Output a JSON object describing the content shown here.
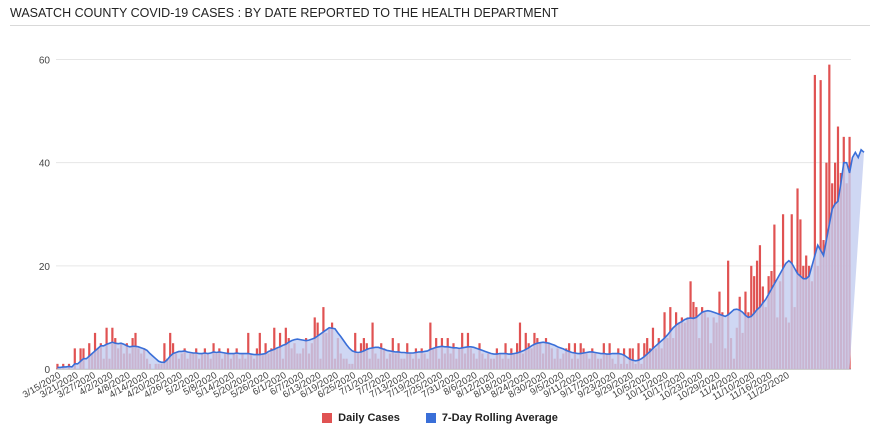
{
  "title": "WASATCH COUNTY COVID-19 CASES : BY DATE REPORTED TO THE HEALTH DEPARTMENT",
  "colors": {
    "daily": "#e05252",
    "rolling": "#3a6fd8",
    "rollingFill": "#c3cdf0"
  },
  "legend": {
    "daily": "Daily Cases",
    "rolling": "7-Day Rolling Average"
  },
  "chart_data": {
    "type": "bar",
    "start_date": "3/15/2020",
    "end_date": "11/22/2020",
    "yticks": [
      0,
      20,
      40,
      60
    ],
    "ylim": [
      0,
      63
    ],
    "xtick_labels": [
      "3/15/2020",
      "3/21/2020",
      "3/27/2020",
      "4/2/2020",
      "4/8/2020",
      "4/14/2020",
      "4/20/2020",
      "4/26/2020",
      "5/2/2020",
      "5/8/2020",
      "5/14/2020",
      "5/20/2020",
      "5/26/2020",
      "6/1/2020",
      "6/7/2020",
      "6/13/2020",
      "6/19/2020",
      "6/25/2020",
      "7/1/2020",
      "7/7/2020",
      "7/13/2020",
      "7/19/2020",
      "7/25/2020",
      "7/31/2020",
      "8/6/2020",
      "8/12/2020",
      "8/18/2020",
      "8/24/2020",
      "8/30/2020",
      "9/5/2020",
      "9/11/2020",
      "9/17/2020",
      "9/23/2020",
      "9/29/2020",
      "10/5/2020",
      "10/11/2020",
      "10/17/2020",
      "10/23/2020",
      "10/29/2020",
      "11/4/2020",
      "11/10/2020",
      "11/16/2020",
      "11/22/2020"
    ],
    "series": [
      {
        "name": "Daily Cases",
        "values": [
          1,
          0,
          1,
          0,
          1,
          0,
          4,
          0,
          4,
          4,
          0,
          5,
          3,
          7,
          4,
          5,
          2,
          8,
          2,
          8,
          6,
          4,
          5,
          3,
          5,
          3,
          6,
          7,
          4,
          3,
          4,
          2,
          1,
          0,
          1,
          1,
          1,
          5,
          2,
          7,
          5,
          3,
          2,
          3,
          4,
          2,
          3,
          3,
          4,
          2,
          3,
          4,
          3,
          2,
          5,
          3,
          4,
          2,
          3,
          4,
          2,
          3,
          4,
          2,
          3,
          2,
          7,
          3,
          2,
          4,
          7,
          3,
          5,
          3,
          4,
          8,
          4,
          7,
          2,
          8,
          6,
          4,
          5,
          3,
          3,
          4,
          6,
          3,
          5,
          10,
          9,
          2,
          12,
          7,
          8,
          9,
          2,
          6,
          3,
          2,
          2,
          1,
          1,
          7,
          3,
          5,
          6,
          5,
          2,
          9,
          3,
          2,
          5,
          4,
          2,
          3,
          6,
          3,
          5,
          2,
          2,
          5,
          3,
          2,
          4,
          2,
          4,
          3,
          2,
          9,
          4,
          6,
          2,
          6,
          3,
          6,
          3,
          5,
          2,
          4,
          7,
          3,
          7,
          4,
          3,
          2,
          5,
          3,
          2,
          3,
          2,
          2,
          4,
          3,
          2,
          5,
          2,
          4,
          3,
          5,
          9,
          3,
          7,
          5,
          4,
          7,
          6,
          5,
          3,
          6,
          5,
          4,
          2,
          4,
          2,
          3,
          4,
          5,
          2,
          5,
          2,
          5,
          4,
          3,
          2,
          4,
          3,
          2,
          2,
          5,
          3,
          5,
          2,
          1,
          4,
          1,
          4,
          1,
          4,
          4,
          1,
          5,
          1,
          5,
          6,
          4,
          8,
          4,
          6,
          4,
          11,
          6,
          12,
          6,
          11,
          9,
          10,
          9,
          10,
          17,
          13,
          12,
          6,
          12,
          11,
          10,
          5,
          10,
          9,
          15,
          11,
          4,
          21,
          6,
          2,
          8,
          14,
          7,
          15,
          11,
          20,
          18,
          21,
          24,
          16,
          12,
          18,
          19,
          28,
          10,
          17,
          30,
          10,
          9,
          30,
          12,
          35,
          29,
          20,
          22,
          20,
          17,
          57,
          20,
          56,
          25,
          40,
          59,
          36,
          40,
          47,
          38,
          45,
          36,
          45
        ]
      },
      {
        "name": "7-Day Rolling Average",
        "values": [
          0.3,
          0.3,
          0.4,
          0.4,
          0.5,
          0.4,
          1,
          1,
          1.5,
          2,
          2,
          2.5,
          3,
          3.5,
          4,
          4.5,
          4.5,
          4.8,
          5,
          5.2,
          5,
          4.9,
          5,
          4.8,
          4.5,
          4.3,
          4.4,
          4.4,
          4.3,
          4.1,
          3.9,
          3.6,
          3,
          2.5,
          2,
          1.5,
          1.3,
          1.3,
          1.8,
          2.5,
          3,
          3.2,
          3.4,
          3.4,
          3.5,
          3.3,
          3.2,
          3.1,
          3.1,
          3,
          3,
          3.1,
          3,
          3.1,
          3.3,
          3.2,
          3.3,
          3.2,
          3.1,
          3,
          3,
          3,
          3.1,
          3,
          3,
          3,
          3,
          2.9,
          2.8,
          2.8,
          2.8,
          2.9,
          3,
          3.4,
          3.6,
          3.8,
          4.1,
          4.3,
          4.6,
          4.8,
          5.2,
          5.5,
          5.7,
          5.8,
          5.7,
          5.6,
          5.5,
          5.6,
          5.8,
          6,
          6.4,
          6.8,
          7.2,
          7.6,
          8,
          7.9,
          7.8,
          7,
          6.3,
          5.5,
          4.7,
          4,
          3.5,
          3.3,
          3.2,
          3.3,
          3.5,
          3.8,
          4,
          4.1,
          4.2,
          4.2,
          4,
          3.8,
          3.6,
          3.5,
          3.4,
          3.3,
          3.3,
          3.2,
          3.2,
          3.1,
          3.1,
          3.1,
          3.2,
          3.3,
          3.3,
          3.4,
          3.5,
          3.8,
          4,
          4.2,
          4.3,
          4.4,
          4.3,
          4.3,
          4.2,
          4.1,
          4.1,
          4,
          4.1,
          4.2,
          4.3,
          4.3,
          4.2,
          4,
          3.8,
          3.6,
          3.4,
          3.2,
          3,
          2.9,
          2.9,
          3,
          3,
          3,
          2.9,
          2.9,
          3,
          3.1,
          3.3,
          3.5,
          3.8,
          4.1,
          4.5,
          4.8,
          5,
          5.1,
          5.2,
          5.1,
          5,
          4.8,
          4.6,
          4.3,
          4.1,
          3.9,
          3.6,
          3.4,
          3.2,
          3.1,
          3,
          3,
          3.1,
          3.2,
          3.3,
          3.3,
          3.2,
          3.1,
          3,
          3,
          2.9,
          2.9,
          3,
          3,
          3,
          2.9,
          2.7,
          2.3,
          1.9,
          1.7,
          1.6,
          1.7,
          2,
          2.4,
          2.9,
          3.4,
          4,
          4.5,
          5,
          5.5,
          6,
          6.6,
          7.3,
          8,
          8.5,
          8.9,
          9.2,
          9.6,
          9.8,
          9.9,
          9.8,
          10,
          10.5,
          11,
          11.2,
          11.3,
          11.2,
          11,
          10.8,
          10.6,
          10.4,
          10.2,
          10.5,
          11,
          11.5,
          11.6,
          11.4,
          11,
          10.4,
          10,
          10.2,
          10.8,
          11.5,
          12,
          12.8,
          13.5,
          14.5,
          15.5,
          16.5,
          17.5,
          18.5,
          19.5,
          20.5,
          21,
          20.5,
          19.5,
          18.5,
          18,
          17.5,
          17.5,
          18,
          20,
          22,
          24,
          23,
          22,
          25,
          28,
          31,
          32,
          32.5,
          36,
          40,
          40,
          38,
          41,
          42,
          41,
          42.5,
          42
        ]
      }
    ]
  }
}
